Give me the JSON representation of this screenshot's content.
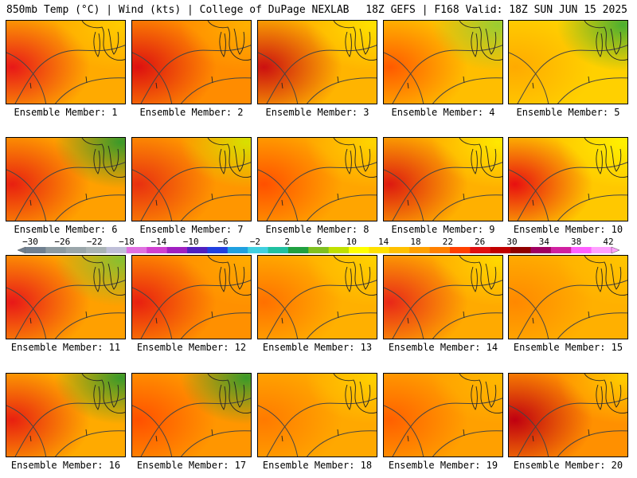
{
  "header": {
    "left": "850mb Temp (°C) | Wind (kts) | College of DuPage NEXLAB",
    "right": "18Z GEFS | F168 Valid: 18Z SUN JUN 15 2025"
  },
  "members": [
    {
      "label": "Ensemble Member: 1",
      "base": "#ffaa00",
      "west": "#e81818",
      "ne": "#ffcc00"
    },
    {
      "label": "Ensemble Member: 2",
      "base": "#ff8c00",
      "west": "#dd1010",
      "ne": "#ffb000"
    },
    {
      "label": "Ensemble Member: 3",
      "base": "#ffb400",
      "west": "#cc1010",
      "ne": "#ffe000"
    },
    {
      "label": "Ensemble Member: 4",
      "base": "#ffbe00",
      "west": "#ff5a00",
      "ne": "#9acd32"
    },
    {
      "label": "Ensemble Member: 5",
      "base": "#ffd000",
      "west": "#ffaa00",
      "ne": "#4caf30"
    },
    {
      "label": "Ensemble Member: 6",
      "base": "#ffa000",
      "west": "#e82010",
      "ne": "#3a9a2a"
    },
    {
      "label": "Ensemble Member: 7",
      "base": "#ff9600",
      "west": "#e83010",
      "ne": "#d8e000"
    },
    {
      "label": "Ensemble Member: 8",
      "base": "#ffa500",
      "west": "#ff5000",
      "ne": "#ffd400"
    },
    {
      "label": "Ensemble Member: 9",
      "base": "#ffb000",
      "west": "#dd1a10",
      "ne": "#ffe800"
    },
    {
      "label": "Ensemble Member: 10",
      "base": "#ffc800",
      "west": "#e81010",
      "ne": "#fff000"
    },
    {
      "label": "Ensemble Member: 11",
      "base": "#ffa000",
      "west": "#e81818",
      "ne": "#88c030"
    },
    {
      "label": "Ensemble Member: 12",
      "base": "#ff9000",
      "west": "#e82010",
      "ne": "#ffaa00"
    },
    {
      "label": "Ensemble Member: 13",
      "base": "#ffb000",
      "west": "#ff7000",
      "ne": "#ffd000"
    },
    {
      "label": "Ensemble Member: 14",
      "base": "#ffaa00",
      "west": "#e82818",
      "ne": "#ffd800"
    },
    {
      "label": "Ensemble Member: 15",
      "base": "#ffb000",
      "west": "#ff8800",
      "ne": "#ffc400"
    },
    {
      "label": "Ensemble Member: 16",
      "base": "#ffaa00",
      "west": "#e82010",
      "ne": "#3a9a2a"
    },
    {
      "label": "Ensemble Member: 17",
      "base": "#ff9600",
      "west": "#ff5000",
      "ne": "#3a9a2a"
    },
    {
      "label": "Ensemble Member: 18",
      "base": "#ffa800",
      "west": "#ff7a00",
      "ne": "#ffd000"
    },
    {
      "label": "Ensemble Member: 19",
      "base": "#ffa000",
      "west": "#ff6000",
      "ne": "#ffb800"
    },
    {
      "label": "Ensemble Member: 20",
      "base": "#ff9000",
      "west": "#c00010",
      "ne": "#ffcc00"
    }
  ],
  "colorbar": {
    "labels": [
      "-30",
      "-26",
      "-22",
      "-18",
      "-14",
      "-10",
      "-6",
      "-2",
      "2",
      "6",
      "10",
      "14",
      "18",
      "22",
      "26",
      "30",
      "34",
      "38",
      "42"
    ],
    "colors": [
      "#708090",
      "#8c9aa0",
      "#9aa6aa",
      "#a9b3b5",
      "#bfbfd8",
      "#e070e0",
      "#d040d0",
      "#a020c0",
      "#5020c0",
      "#2040e0",
      "#20a0e0",
      "#40d0e0",
      "#20c0a0",
      "#20a040",
      "#80c020",
      "#c0e000",
      "#ffff00",
      "#ffe000",
      "#ffc000",
      "#ffa000",
      "#ff8000",
      "#ff4000",
      "#e01010",
      "#c00000",
      "#900000",
      "#a00060",
      "#d020a0",
      "#ff60ff",
      "#ffa0ff"
    ]
  }
}
